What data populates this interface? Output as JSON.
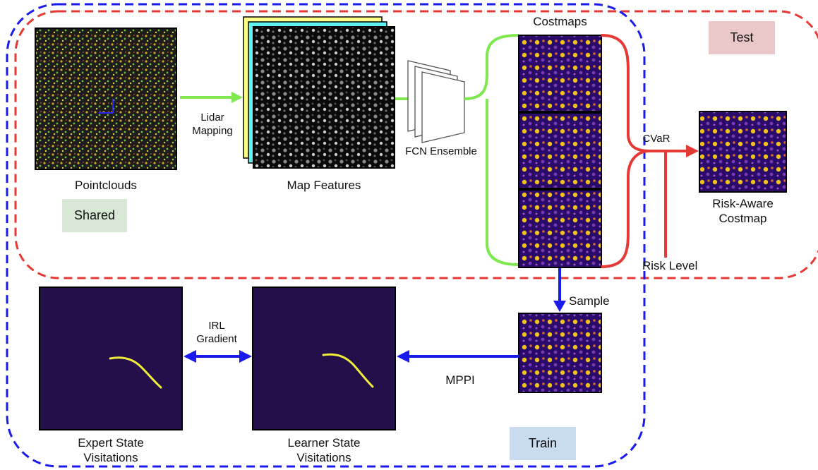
{
  "labels": {
    "pointclouds": "Pointclouds",
    "map_features": "Map Features",
    "costmaps": "Costmaps",
    "lidar_mapping": "Lidar\nMapping",
    "fcn_ensemble": "FCN Ensemble",
    "cvar": "CVaR",
    "risk_aware_costmap": "Risk-Aware\nCostmap",
    "risk_level": "Risk Level",
    "sample": "Sample",
    "mppi": "MPPI",
    "irl_gradient": "IRL\nGradient",
    "expert_state_visitations": "Expert State\nVisitations",
    "learner_state_visitations": "Learner State\nVisitations"
  },
  "tags": {
    "test": "Test",
    "shared": "Shared",
    "train": "Train"
  },
  "colors": {
    "test_region": "#e53935",
    "train_region": "#1a1aee",
    "green_arrow": "#7ee84e",
    "red_arrow": "#e53935",
    "blue_arrow": "#1a1aee",
    "test_tag_bg": "#eac8c8",
    "shared_tag_bg": "#d7e8d4",
    "train_tag_bg": "#c9dbee",
    "visitation_bg": "#23104a",
    "trajectory": "#f2ec3a",
    "costmap_dark": "#2a0a6a",
    "costmap_mid": "#7a3bb0",
    "costmap_hot": "#f2c21c",
    "feature_layer_yellow": "#ffff88",
    "feature_layer_cyan": "#5ff2f2"
  }
}
